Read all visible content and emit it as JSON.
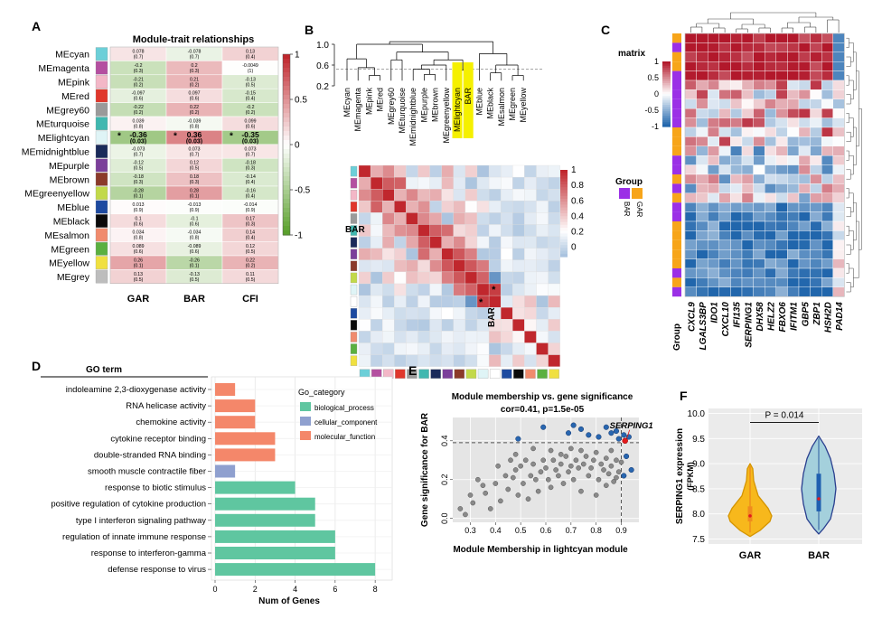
{
  "panels": {
    "A": {
      "letter": "A",
      "title": "Module-trait relationships",
      "traits": [
        "GAR",
        "BAR",
        "CFI"
      ],
      "modules": [
        "MEcyan",
        "MEmagenta",
        "MEpink",
        "MEred",
        "MEgrey60",
        "MEturquoise",
        "MElightcyan",
        "MEmidnightblue",
        "MEpurple",
        "MEbrown",
        "MEgreenyellow",
        "MEblue",
        "MEblack",
        "MEsalmon",
        "MEgreen",
        "MEyellow",
        "MEgrey"
      ],
      "module_colors": [
        "#6ccfd8",
        "#b44fa0",
        "#f3b7c7",
        "#e0372c",
        "#9a9a9a",
        "#40b8b0",
        "#dff4f6",
        "#1a2a5a",
        "#7b3f9a",
        "#8b3a2a",
        "#c2d94a",
        "#1d4aa0",
        "#0a0a0a",
        "#f08b6d",
        "#5bb040",
        "#f0e040",
        "#bdbdbd"
      ],
      "corr": [
        [
          "0.078",
          "-0.078",
          "0.13"
        ],
        [
          "-0.2",
          "0.2",
          "-0.0049"
        ],
        [
          "-0.21",
          "0.21",
          "-0.13"
        ],
        [
          "-0.097",
          "0.097",
          "-0.15"
        ],
        [
          "-0.22",
          "0.22",
          "-0.2"
        ],
        [
          "0.039",
          "-0.039",
          "0.099"
        ],
        [
          "-0.36",
          "0.36",
          "-0.35"
        ],
        [
          "-0.073",
          "0.073",
          "0.073"
        ],
        [
          "-0.12",
          "0.12",
          "-0.18"
        ],
        [
          "-0.18",
          "0.18",
          "-0.14"
        ],
        [
          "-0.28",
          "0.28",
          "-0.16"
        ],
        [
          "0.013",
          "-0.013",
          "-0.014"
        ],
        [
          "0.1",
          "-0.1",
          "0.17"
        ],
        [
          "0.034",
          "-0.034",
          "0.14"
        ],
        [
          "0.089",
          "-0.089",
          "0.12"
        ],
        [
          "0.26",
          "-0.26",
          "0.22"
        ],
        [
          "0.13",
          "-0.13",
          "0.11"
        ]
      ],
      "pvals": [
        [
          "(0.7)",
          "(0.7)",
          "(0.4)"
        ],
        [
          "(0.3)",
          "(0.3)",
          "(1)"
        ],
        [
          "(0.2)",
          "(0.2)",
          "(0.5)"
        ],
        [
          "(0.6)",
          "(0.6)",
          "(0.4)"
        ],
        [
          "(0.2)",
          "(0.2)",
          "(0.2)"
        ],
        [
          "(0.8)",
          "(0.8)",
          "(0.6)"
        ],
        [
          "(0.03)",
          "(0.03)",
          "(0.03)"
        ],
        [
          "(0.7)",
          "(0.7)",
          "(0.7)"
        ],
        [
          "(0.5)",
          "(0.5)",
          "(0.3)"
        ],
        [
          "(0.3)",
          "(0.3)",
          "(0.4)"
        ],
        [
          "(0.1)",
          "(0.1)",
          "(0.4)"
        ],
        [
          "(0.9)",
          "(0.9)",
          "(0.9)"
        ],
        [
          "(0.6)",
          "(0.6)",
          "(0.3)"
        ],
        [
          "(0.8)",
          "(0.8)",
          "(0.4)"
        ],
        [
          "(0.6)",
          "(0.6)",
          "(0.5)"
        ],
        [
          "(0.1)",
          "(0.1)",
          "(0.2)"
        ],
        [
          "(0.5)",
          "(0.5)",
          "(0.5)"
        ]
      ],
      "significant_row": 6,
      "star": "*",
      "legend_ticks": [
        "1",
        "0.5",
        "0",
        "-0.5",
        "-1"
      ],
      "colors": {
        "pos": "#c0272d",
        "neg": "#5aa02c",
        "mid": "#ffffff"
      }
    },
    "B": {
      "letter": "B",
      "dendro_ticks": [
        "1.0",
        "0.6",
        "0.2"
      ],
      "leaves": [
        "MEcyan",
        "MEmagenta",
        "MEpink",
        "MEred",
        "MEgrey60",
        "MEturquoise",
        "MEmidnightblue",
        "MEpurple",
        "MEbrown",
        "MEgreenyellow",
        "MElightcyan",
        "BAR",
        "MEblue",
        "MEblack",
        "MEsalmon",
        "MEgreen",
        "MEyellow"
      ],
      "highlight_leaves": [
        "MElightcyan",
        "BAR"
      ],
      "highlight_color": "#f5f000",
      "row_label": "BAR",
      "col_label": "BAR",
      "legend_ticks": [
        "1",
        "0.8",
        "0.6",
        "0.4",
        "0.2",
        "0"
      ],
      "star": "*"
    },
    "C": {
      "letter": "C",
      "legend_title": "matrix",
      "legend_ticks": [
        "1",
        "0.5",
        "0",
        "-0.5",
        "-1"
      ],
      "group_title": "Group",
      "group_labels": [
        "BAR",
        "GAR"
      ],
      "group_colors": [
        "#9b30e6",
        "#f7a51a"
      ],
      "genes": [
        "CXCL9",
        "LGALS3BP",
        "IDO1",
        "CXCL10",
        "IFI135",
        "SERPING1",
        "DHX58",
        "HELZ2",
        "FBXO6",
        "IFITM1",
        "GBP5",
        "ZBP1",
        "HSH2D",
        "PAD14"
      ],
      "group_axis_label": "Group"
    },
    "D": {
      "letter": "D",
      "header": "GO term",
      "xlabel": "Num of Genes",
      "legend_title": "Go_category",
      "categories_legend": [
        "biological_process",
        "cellular_component",
        "molecular_function"
      ],
      "category_colors": {
        "biological_process": "#5fc6a0",
        "cellular_component": "#8fa0cf",
        "molecular_function": "#f4876a"
      }
    },
    "E": {
      "letter": "E",
      "title": "Module membership vs. gene significance",
      "subtitle": "cor=0.41, p=1.5e-05",
      "xlabel": "Module Membership in lightcyan module",
      "ylabel": "Gene significance for BAR",
      "annotation": "SERPING1"
    },
    "F": {
      "letter": "F",
      "pvalue": "P = 0.014",
      "ylabel_line1": "SERPING1 expression",
      "ylabel_line2": "(FPKM)",
      "groups": [
        "GAR",
        "BAR"
      ],
      "group_colors": [
        "#f7b81c",
        "#a4d0dc"
      ]
    }
  },
  "chart_data": [
    {
      "type": "bar",
      "orientation": "horizontal",
      "panel": "D",
      "categories": [
        "indoleamine 2,3-dioxygenase activity",
        "RNA helicase activity",
        "chemokine activity",
        "cytokine receptor binding",
        "double-stranded RNA binding",
        "smooth muscle contractile fiber",
        "response to biotic stimulus",
        "positive regulation of cytokine production",
        "type I interferon signaling pathway",
        "regulation of innate immune response",
        "response to interferon-gamma",
        "defense response to virus"
      ],
      "values": [
        1,
        2,
        2,
        3,
        3,
        1,
        4,
        5,
        5,
        6,
        6,
        8
      ],
      "category_group": [
        "molecular_function",
        "molecular_function",
        "molecular_function",
        "molecular_function",
        "molecular_function",
        "cellular_component",
        "biological_process",
        "biological_process",
        "biological_process",
        "biological_process",
        "biological_process",
        "biological_process"
      ],
      "xlabel": "Num of Genes",
      "xlim": [
        0,
        8.4
      ],
      "xticks": [
        "0",
        "2",
        "4",
        "6",
        "8"
      ]
    },
    {
      "type": "scatter",
      "panel": "E",
      "title": "Module membership vs. gene significance",
      "subtitle": "cor=0.41, p=1.5e-05",
      "xlabel": "Module Membership in lightcyan module",
      "ylabel": "Gene significance for BAR",
      "xlim": [
        0.23,
        0.97
      ],
      "ylim": [
        -0.02,
        0.52
      ],
      "xticks": [
        "0.3",
        "0.4",
        "0.5",
        "0.6",
        "0.7",
        "0.8",
        "0.9"
      ],
      "yticks": [
        "0.0",
        "0.2",
        "0.4"
      ],
      "thresholds": {
        "x": 0.9,
        "y": 0.39
      },
      "highlight": {
        "label": "SERPING1",
        "x": 0.915,
        "y": 0.4
      },
      "points": [
        [
          0.26,
          0.05
        ],
        [
          0.28,
          0.02
        ],
        [
          0.3,
          0.12
        ],
        [
          0.31,
          0.08
        ],
        [
          0.33,
          0.2
        ],
        [
          0.35,
          0.17
        ],
        [
          0.36,
          0.13
        ],
        [
          0.38,
          0.05
        ],
        [
          0.4,
          0.18
        ],
        [
          0.41,
          0.27
        ],
        [
          0.42,
          0.09
        ],
        [
          0.44,
          0.22
        ],
        [
          0.45,
          0.15
        ],
        [
          0.46,
          0.3
        ],
        [
          0.47,
          0.21
        ],
        [
          0.48,
          0.25
        ],
        [
          0.49,
          0.12
        ],
        [
          0.5,
          0.27
        ],
        [
          0.51,
          0.18
        ],
        [
          0.52,
          0.3
        ],
        [
          0.53,
          0.1
        ],
        [
          0.54,
          0.22
        ],
        [
          0.55,
          0.28
        ],
        [
          0.56,
          0.2
        ],
        [
          0.57,
          0.14
        ],
        [
          0.58,
          0.24
        ],
        [
          0.59,
          0.3
        ],
        [
          0.6,
          0.26
        ],
        [
          0.61,
          0.2
        ],
        [
          0.62,
          0.16
        ],
        [
          0.63,
          0.3
        ],
        [
          0.64,
          0.25
        ],
        [
          0.65,
          0.22
        ],
        [
          0.66,
          0.28
        ],
        [
          0.67,
          0.18
        ],
        [
          0.68,
          0.32
        ],
        [
          0.69,
          0.24
        ],
        [
          0.7,
          0.27
        ],
        [
          0.71,
          0.2
        ],
        [
          0.72,
          0.3
        ],
        [
          0.73,
          0.26
        ],
        [
          0.74,
          0.14
        ],
        [
          0.75,
          0.28
        ],
        [
          0.76,
          0.32
        ],
        [
          0.77,
          0.22
        ],
        [
          0.78,
          0.26
        ],
        [
          0.79,
          0.3
        ],
        [
          0.8,
          0.12
        ],
        [
          0.81,
          0.2
        ],
        [
          0.82,
          0.28
        ],
        [
          0.83,
          0.25
        ],
        [
          0.84,
          0.31
        ],
        [
          0.85,
          0.23
        ],
        [
          0.86,
          0.27
        ],
        [
          0.87,
          0.19
        ],
        [
          0.88,
          0.3
        ],
        [
          0.89,
          0.24
        ],
        [
          0.62,
          0.35
        ],
        [
          0.7,
          0.36
        ],
        [
          0.8,
          0.34
        ],
        [
          0.55,
          0.36
        ],
        [
          0.48,
          0.33
        ],
        [
          0.66,
          0.33
        ],
        [
          0.74,
          0.35
        ],
        [
          0.86,
          0.35
        ],
        [
          0.9,
          0.29
        ],
        [
          0.88,
          0.21
        ],
        [
          0.84,
          0.17
        ]
      ],
      "blue_points": [
        [
          0.59,
          0.47
        ],
        [
          0.69,
          0.44
        ],
        [
          0.71,
          0.48
        ],
        [
          0.74,
          0.46
        ],
        [
          0.77,
          0.43
        ],
        [
          0.81,
          0.42
        ],
        [
          0.84,
          0.47
        ],
        [
          0.86,
          0.44
        ],
        [
          0.89,
          0.41
        ],
        [
          0.91,
          0.43
        ],
        [
          0.93,
          0.42
        ],
        [
          0.92,
          0.32
        ],
        [
          0.94,
          0.25
        ],
        [
          0.91,
          0.22
        ],
        [
          0.49,
          0.41
        ],
        [
          0.88,
          0.45
        ]
      ]
    },
    {
      "type": "violin",
      "panel": "F",
      "categories": [
        "GAR",
        "BAR"
      ],
      "ylabel": "SERPING1 expression (FPKM)",
      "ylim": [
        7.4,
        10.1
      ],
      "yticks": [
        "7.5",
        "8.0",
        "8.5",
        "9.0",
        "9.5",
        "10.0"
      ],
      "min": [
        7.55,
        7.6
      ],
      "max": [
        9.0,
        9.55
      ],
      "q1": [
        7.85,
        8.05
      ],
      "median": [
        7.96,
        8.3
      ],
      "q3": [
        8.15,
        8.8
      ],
      "pvalue": "P = 0.014"
    }
  ]
}
